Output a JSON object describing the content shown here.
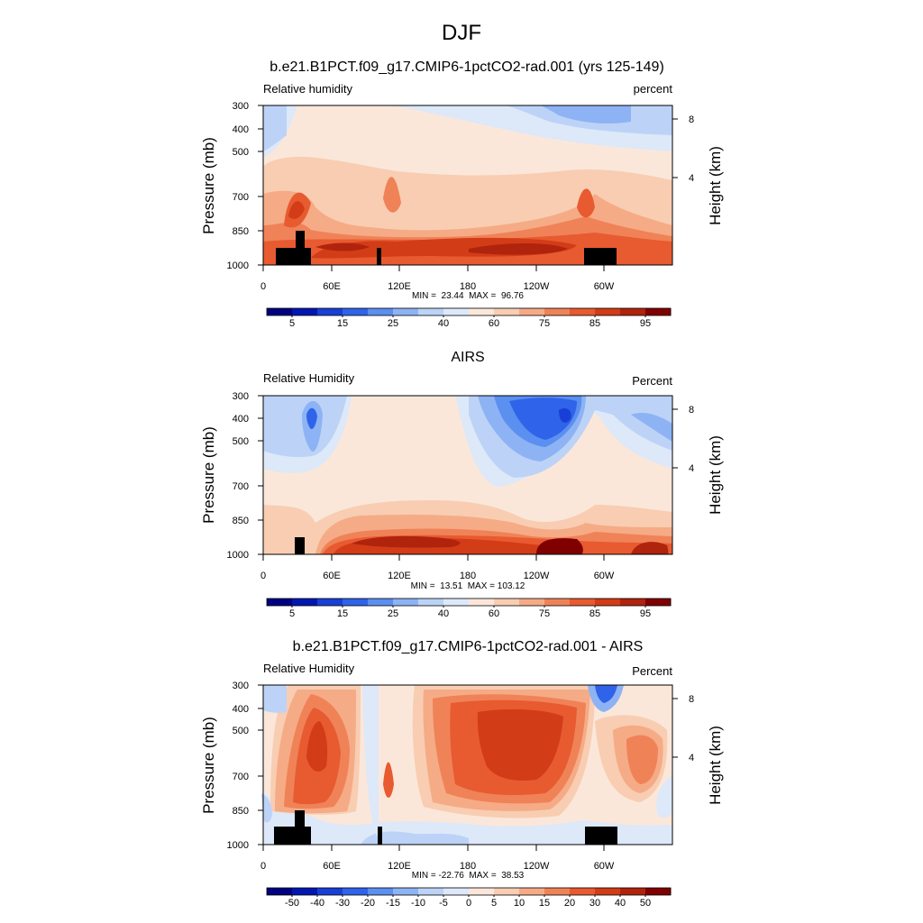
{
  "figure": {
    "title": "DJF"
  },
  "axes_common": {
    "ylabel_left": "Pressure (mb)",
    "ylabel_right": "Height (km)",
    "pressure_ticks": [
      "300",
      "400",
      "500",
      "700",
      "850",
      "1000"
    ],
    "height_ticks": [
      "8",
      "4"
    ],
    "lon_ticks": [
      "0",
      "60E",
      "120E",
      "180",
      "120W",
      "60W"
    ]
  },
  "chart_data": [
    {
      "type": "heatmap",
      "title": "b.e21.B1PCT.f09_g17.CMIP6-1pctCO2-rad.001 (yrs 125-149)",
      "left_label": "Relative humidity",
      "right_label": "percent",
      "stats": "MIN =  23.44  MAX =  96.76",
      "min": 23.44,
      "max": 96.76,
      "colorbar_labels": [
        "5",
        "15",
        "25",
        "40",
        "60",
        "75",
        "85",
        "95"
      ],
      "xlim": [
        0,
        360
      ],
      "ylim_mb": [
        1000,
        300
      ]
    },
    {
      "type": "heatmap",
      "title": "AIRS",
      "left_label": "Relative Humidity",
      "right_label": "Percent",
      "stats": "MIN =  13.51  MAX = 103.12",
      "min": 13.51,
      "max": 103.12,
      "colorbar_labels": [
        "5",
        "15",
        "25",
        "40",
        "60",
        "75",
        "85",
        "95"
      ],
      "xlim": [
        0,
        360
      ],
      "ylim_mb": [
        1000,
        300
      ]
    },
    {
      "type": "heatmap",
      "title": "b.e21.B1PCT.f09_g17.CMIP6-1pctCO2-rad.001 - AIRS",
      "left_label": "Relative Humidity",
      "right_label": "Percent",
      "stats": "MIN = -22.76  MAX =  38.53",
      "min": -22.76,
      "max": 38.53,
      "colorbar_labels": [
        "-50",
        "-40",
        "-30",
        "-20",
        "-15",
        "-10",
        "-5",
        "0",
        "5",
        "10",
        "15",
        "20",
        "30",
        "40",
        "50"
      ],
      "xlim": [
        0,
        360
      ],
      "ylim_mb": [
        1000,
        300
      ]
    }
  ],
  "colors": {
    "palette": [
      "#000080",
      "#0018b0",
      "#1a3fd6",
      "#2f63e9",
      "#5b8ff0",
      "#8db3f4",
      "#bcd3f7",
      "#dde8f9",
      "#fbe7da",
      "#f8cdb2",
      "#f5ab86",
      "#f08258",
      "#e85a30",
      "#d23c17",
      "#b0230d",
      "#800000"
    ]
  }
}
